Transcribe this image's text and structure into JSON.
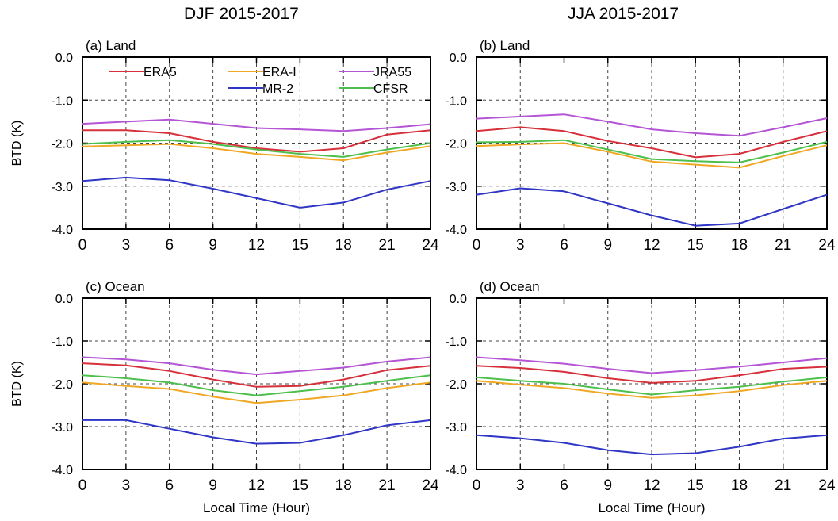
{
  "titles": {
    "left": "DJF 2015-2017",
    "right": "JJA 2015-2017"
  },
  "legend": {
    "entries": [
      {
        "name": "ERA5",
        "color": "#d6303a"
      },
      {
        "name": "ERA-I",
        "color": "#f0a824"
      },
      {
        "name": "JRA55",
        "color": "#b455d6"
      },
      {
        "name": "MR-2",
        "color": "#2f35c4"
      },
      {
        "name": "CFSR",
        "color": "#4cbf4c"
      }
    ]
  },
  "chart_data": [
    {
      "type": "line",
      "label": "(a) Land",
      "column": "DJF 2015-2017",
      "x": [
        0,
        3,
        6,
        9,
        12,
        15,
        18,
        21,
        24
      ],
      "xlabel": "",
      "ylabel": "BTD (K)",
      "xlim": [
        0,
        24
      ],
      "ylim": [
        -4.0,
        0.0
      ],
      "xticks": [
        "0",
        "3",
        "6",
        "9",
        "12",
        "15",
        "18",
        "21",
        "24"
      ],
      "yticks": [
        "0.0",
        "-1.0",
        "-2.0",
        "-3.0",
        "-4.0"
      ],
      "grid": true,
      "series": [
        {
          "name": "ERA5",
          "values": [
            -1.7,
            -1.7,
            -1.77,
            -1.97,
            -2.12,
            -2.2,
            -2.12,
            -1.8,
            -1.7
          ]
        },
        {
          "name": "ERA-I",
          "values": [
            -2.08,
            -2.05,
            -2.02,
            -2.12,
            -2.25,
            -2.32,
            -2.4,
            -2.22,
            -2.07
          ]
        },
        {
          "name": "JRA55",
          "values": [
            -1.55,
            -1.5,
            -1.45,
            -1.55,
            -1.65,
            -1.68,
            -1.72,
            -1.65,
            -1.56
          ]
        },
        {
          "name": "MR-2",
          "values": [
            -2.88,
            -2.8,
            -2.86,
            -3.06,
            -3.28,
            -3.5,
            -3.38,
            -3.08,
            -2.88
          ]
        },
        {
          "name": "CFSR",
          "values": [
            -2.02,
            -1.97,
            -1.93,
            -2.02,
            -2.15,
            -2.25,
            -2.32,
            -2.15,
            -2.0
          ]
        }
      ]
    },
    {
      "type": "line",
      "label": "(b) Land",
      "column": "JJA 2015-2017",
      "x": [
        0,
        3,
        6,
        9,
        12,
        15,
        18,
        21,
        24
      ],
      "xlabel": "",
      "ylabel": "",
      "xlim": [
        0,
        24
      ],
      "ylim": [
        -4.0,
        0.0
      ],
      "xticks": [
        "0",
        "3",
        "6",
        "9",
        "12",
        "15",
        "18",
        "21",
        "24"
      ],
      "yticks": [
        "0.0",
        "-1.0",
        "-2.0",
        "-3.0",
        "-4.0"
      ],
      "grid": true,
      "series": [
        {
          "name": "ERA5",
          "values": [
            -1.72,
            -1.63,
            -1.72,
            -1.95,
            -2.12,
            -2.33,
            -2.25,
            -1.97,
            -1.72
          ]
        },
        {
          "name": "ERA-I",
          "values": [
            -2.07,
            -2.03,
            -2.0,
            -2.2,
            -2.43,
            -2.5,
            -2.57,
            -2.3,
            -2.05
          ]
        },
        {
          "name": "JRA55",
          "values": [
            -1.43,
            -1.38,
            -1.33,
            -1.5,
            -1.68,
            -1.77,
            -1.83,
            -1.63,
            -1.42
          ]
        },
        {
          "name": "MR-2",
          "values": [
            -3.2,
            -3.05,
            -3.12,
            -3.4,
            -3.68,
            -3.92,
            -3.87,
            -3.53,
            -3.2
          ]
        },
        {
          "name": "CFSR",
          "values": [
            -1.98,
            -1.97,
            -1.93,
            -2.15,
            -2.37,
            -2.42,
            -2.45,
            -2.22,
            -1.97
          ]
        }
      ]
    },
    {
      "type": "line",
      "label": "(c) Ocean",
      "column": "DJF 2015-2017",
      "x": [
        0,
        3,
        6,
        9,
        12,
        15,
        18,
        21,
        24
      ],
      "xlabel": "Local Time (Hour)",
      "ylabel": "BTD (K)",
      "xlim": [
        0,
        24
      ],
      "ylim": [
        -4.0,
        0.0
      ],
      "xticks": [
        "0",
        "3",
        "6",
        "9",
        "12",
        "15",
        "18",
        "21",
        "24"
      ],
      "yticks": [
        "0.0",
        "-1.0",
        "-2.0",
        "-3.0",
        "-4.0"
      ],
      "grid": true,
      "series": [
        {
          "name": "ERA5",
          "values": [
            -1.52,
            -1.57,
            -1.7,
            -1.9,
            -2.07,
            -2.05,
            -1.9,
            -1.68,
            -1.58
          ]
        },
        {
          "name": "ERA-I",
          "values": [
            -1.97,
            -2.05,
            -2.12,
            -2.3,
            -2.45,
            -2.37,
            -2.27,
            -2.1,
            -1.97
          ]
        },
        {
          "name": "JRA55",
          "values": [
            -1.38,
            -1.43,
            -1.52,
            -1.67,
            -1.78,
            -1.7,
            -1.62,
            -1.48,
            -1.38
          ]
        },
        {
          "name": "MR-2",
          "values": [
            -2.85,
            -2.85,
            -3.05,
            -3.25,
            -3.4,
            -3.38,
            -3.2,
            -2.97,
            -2.85
          ]
        },
        {
          "name": "CFSR",
          "values": [
            -1.8,
            -1.87,
            -1.97,
            -2.15,
            -2.27,
            -2.17,
            -2.07,
            -1.93,
            -1.8
          ]
        }
      ]
    },
    {
      "type": "line",
      "label": "(d) Ocean",
      "column": "JJA 2015-2017",
      "x": [
        0,
        3,
        6,
        9,
        12,
        15,
        18,
        21,
        24
      ],
      "xlabel": "Local Time (Hour)",
      "ylabel": "",
      "xlim": [
        0,
        24
      ],
      "ylim": [
        -4.0,
        0.0
      ],
      "xticks": [
        "0",
        "3",
        "6",
        "9",
        "12",
        "15",
        "18",
        "21",
        "24"
      ],
      "yticks": [
        "0.0",
        "-1.0",
        "-2.0",
        "-3.0",
        "-4.0"
      ],
      "grid": true,
      "series": [
        {
          "name": "ERA5",
          "values": [
            -1.58,
            -1.63,
            -1.72,
            -1.87,
            -1.98,
            -1.93,
            -1.8,
            -1.65,
            -1.6
          ]
        },
        {
          "name": "ERA-I",
          "values": [
            -1.93,
            -2.02,
            -2.1,
            -2.23,
            -2.33,
            -2.27,
            -2.17,
            -2.03,
            -1.93
          ]
        },
        {
          "name": "JRA55",
          "values": [
            -1.38,
            -1.45,
            -1.53,
            -1.65,
            -1.75,
            -1.68,
            -1.6,
            -1.5,
            -1.4
          ]
        },
        {
          "name": "MR-2",
          "values": [
            -3.2,
            -3.27,
            -3.38,
            -3.55,
            -3.65,
            -3.62,
            -3.47,
            -3.28,
            -3.2
          ]
        },
        {
          "name": "CFSR",
          "values": [
            -1.85,
            -1.93,
            -2.0,
            -2.13,
            -2.25,
            -2.15,
            -2.07,
            -1.95,
            -1.85
          ]
        }
      ]
    }
  ]
}
